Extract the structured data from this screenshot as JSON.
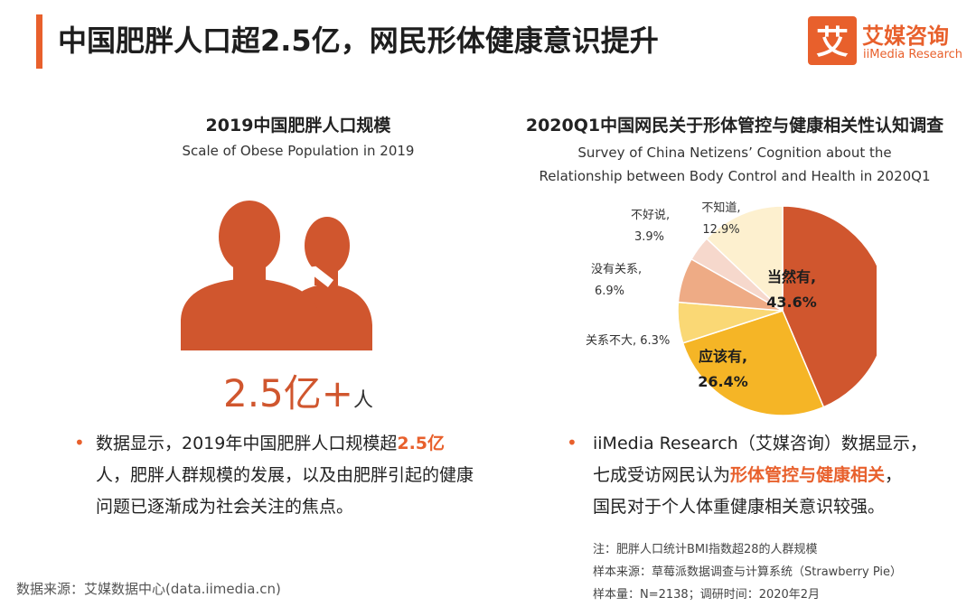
{
  "header": {
    "title": "中国肥胖人口超2.5亿，网民形体健康意识提升"
  },
  "logo": {
    "icon_text": "艾",
    "name_cn": "艾媒咨询",
    "name_en": "iiMedia Research"
  },
  "colors": {
    "accent": "#e8602c",
    "people": "#d0562e"
  },
  "left_panel": {
    "title": "2019中国肥胖人口规模",
    "subtitle": "Scale of Obese Population in 2019",
    "icon": "people-icon",
    "big_number": "2.5亿+",
    "big_number_unit": "人",
    "desc_before": "数据显示，2019年中国肥胖人口规模超",
    "desc_highlight": "2.5亿",
    "desc_after": "人，肥胖人群规模的发展，以及由肥胖引起的健康问题已逐渐成为社会关注的焦点。"
  },
  "right_panel": {
    "title": "2020Q1中国网民关于形体管控与健康相关性认知调查",
    "subtitle_line1": "Survey of China Netizens’  Cognition about the",
    "subtitle_line2": "Relationship between Body Control and Health in 2020Q1",
    "desc_line1": "iiMedia Research（艾媒咨询）数据显示，",
    "desc_line2_before": "七成受访网民认为",
    "desc_line2_highlight": "形体管控与健康相关",
    "desc_line2_after": "，",
    "desc_line3": "国民对于个人体重健康相关意识较强。"
  },
  "chart_data": {
    "type": "pie",
    "title": "2020Q1中国网民关于形体管控与健康相关性认知调查",
    "slices": [
      {
        "label": "当然有,",
        "value": 43.6,
        "value_label": "43.6%",
        "color": "#d0562e"
      },
      {
        "label": "应该有,",
        "value": 26.4,
        "value_label": "26.4%",
        "color": "#f5b526"
      },
      {
        "label": "关系不大, 6.3%",
        "value": 6.3,
        "value_label": "",
        "color": "#fad875"
      },
      {
        "label": "没有关系,",
        "value": 6.9,
        "value_label": "6.9%",
        "color": "#eeab85"
      },
      {
        "label": "不好说,",
        "value": 3.9,
        "value_label": "3.9%",
        "color": "#f6d8cc"
      },
      {
        "label": "不知道,",
        "value": 12.9,
        "value_label": "12.9%",
        "color": "#fdf0cf"
      }
    ]
  },
  "notes": {
    "note": "注：肥胖人口统计BMI指数超28的人群规模",
    "source": "样本来源：草莓派数据调查与计算系统（Strawberry Pie）",
    "sample": "样本量：N=2138；调研时间：2020年2月"
  },
  "footer": {
    "data_source": "数据来源：艾媒数据中心(data.iimedia.cn)"
  }
}
